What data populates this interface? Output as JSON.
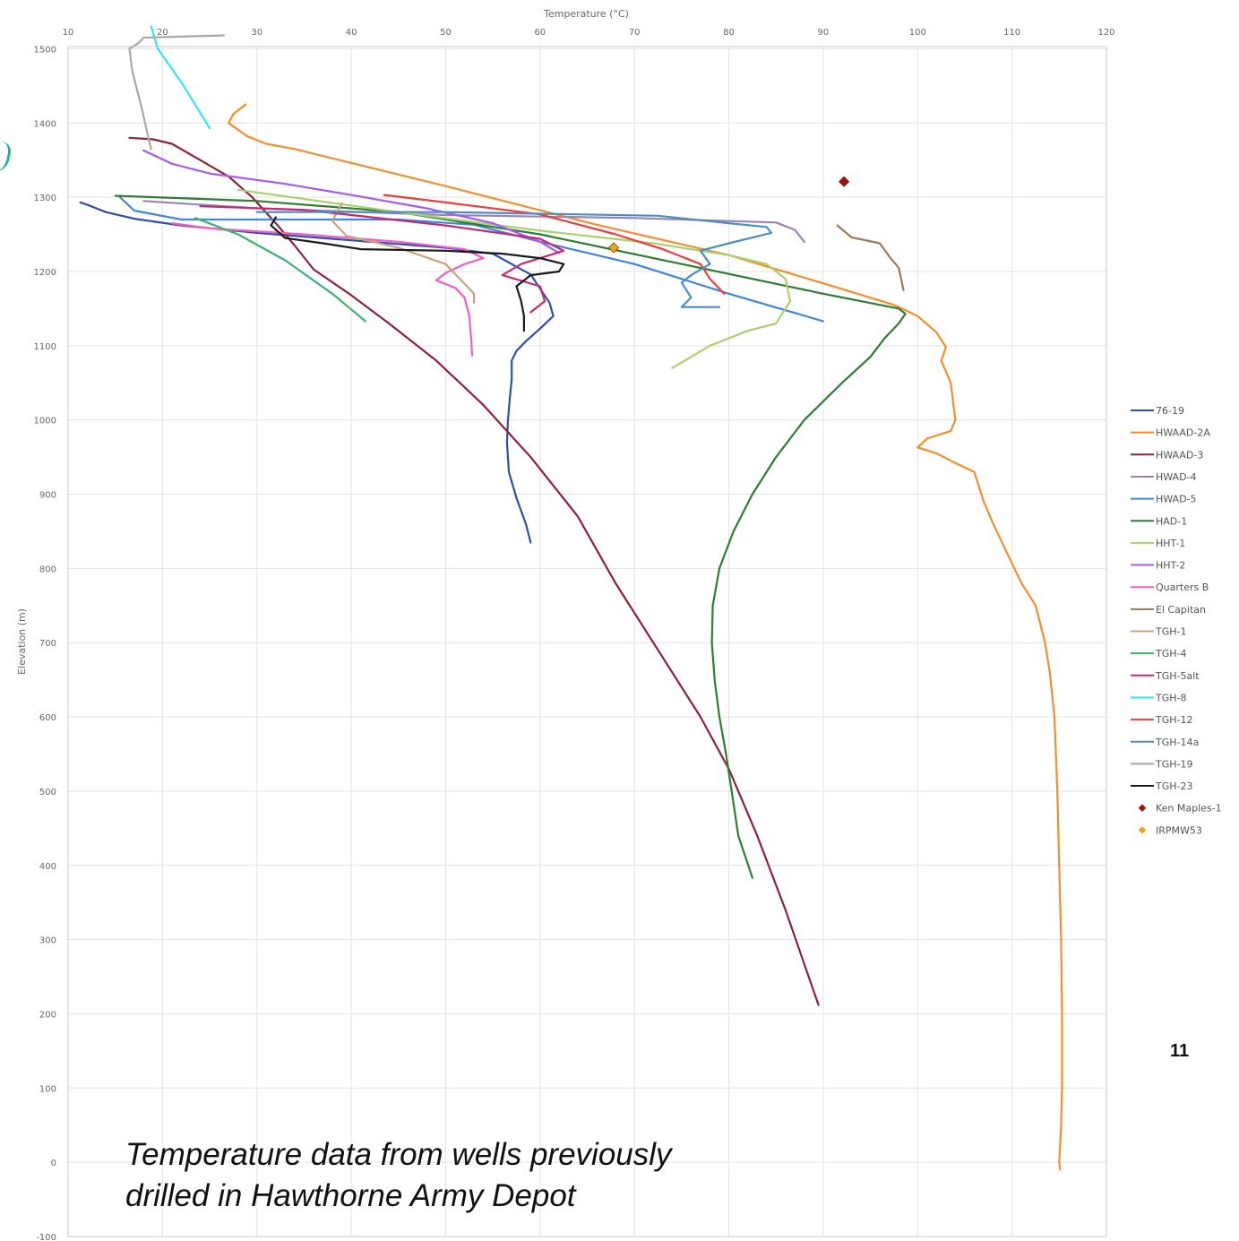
{
  "slide": {
    "caption_line1": "Temperature data from wells previously",
    "caption_line2": "drilled in Hawthorne Army Depot",
    "page_number": "11"
  },
  "chart_data": {
    "type": "line",
    "xlabel": "Temperature (°C)",
    "ylabel": "Elevation (m)",
    "xlim": [
      10,
      120
    ],
    "ylim": [
      -100,
      1550
    ],
    "x_axis_position": "top",
    "x_ticks": [
      10,
      20,
      30,
      40,
      50,
      60,
      70,
      80,
      90,
      100,
      110,
      120
    ],
    "y_ticks": [
      -100,
      0,
      100,
      200,
      300,
      400,
      500,
      600,
      700,
      800,
      900,
      1000,
      1100,
      1200,
      1300,
      1400,
      1500
    ],
    "grid": "vertical and horizontal light gray",
    "legend": "right",
    "series": [
      {
        "name": "76-19",
        "color": "#2f4fa8",
        "type": "line",
        "points": [
          [
            11.3,
            1293
          ],
          [
            12,
            1290
          ],
          [
            14,
            1280
          ],
          [
            17,
            1271
          ],
          [
            22,
            1262
          ],
          [
            30,
            1252
          ],
          [
            40,
            1242
          ],
          [
            50,
            1232
          ],
          [
            55,
            1224
          ],
          [
            59,
            1196
          ],
          [
            61,
            1158
          ],
          [
            61.4,
            1140
          ],
          [
            60,
            1123
          ],
          [
            58.5,
            1106
          ],
          [
            57.5,
            1093
          ],
          [
            57,
            1080
          ],
          [
            57,
            1055
          ],
          [
            56.8,
            1030
          ],
          [
            56.6,
            1000
          ],
          [
            56.5,
            970
          ],
          [
            56.7,
            930
          ],
          [
            57.5,
            895
          ],
          [
            58.5,
            860
          ],
          [
            59,
            835
          ]
        ]
      },
      {
        "name": "HWAAD-2A",
        "color": "#f28e2b",
        "type": "line",
        "points": [
          [
            28.8,
            1425
          ],
          [
            27.5,
            1412
          ],
          [
            27,
            1400
          ],
          [
            29,
            1382
          ],
          [
            31,
            1372
          ],
          [
            34,
            1365
          ],
          [
            50,
            1315
          ],
          [
            66,
            1263
          ],
          [
            80,
            1222
          ],
          [
            90,
            1184
          ],
          [
            97.5,
            1155
          ],
          [
            100,
            1140
          ],
          [
            102,
            1118
          ],
          [
            103,
            1098
          ],
          [
            102.5,
            1080
          ],
          [
            103.5,
            1050
          ],
          [
            104,
            1000
          ],
          [
            103.5,
            985
          ],
          [
            101,
            975
          ],
          [
            100,
            963
          ],
          [
            102,
            955
          ],
          [
            104,
            942
          ],
          [
            106,
            930
          ],
          [
            107,
            890
          ],
          [
            108,
            860
          ],
          [
            109.5,
            820
          ],
          [
            111,
            780
          ],
          [
            112.5,
            750
          ],
          [
            113.5,
            700
          ],
          [
            114,
            660
          ],
          [
            114.5,
            600
          ],
          [
            114.8,
            500
          ],
          [
            115,
            400
          ],
          [
            115.2,
            300
          ],
          [
            115.3,
            200
          ],
          [
            115.3,
            100
          ],
          [
            115.2,
            50
          ],
          [
            115,
            0
          ],
          [
            115.1,
            -10
          ]
        ]
      },
      {
        "name": "HWAAD-3",
        "color": "#8b2335",
        "type": "line",
        "points": [
          [
            16.5,
            1380
          ],
          [
            19,
            1378
          ],
          [
            21,
            1372
          ],
          [
            24,
            1350
          ],
          [
            27,
            1328
          ],
          [
            29.5,
            1300
          ],
          [
            32,
            1265
          ],
          [
            34,
            1235
          ],
          [
            36,
            1203
          ],
          [
            40,
            1168
          ],
          [
            44,
            1130
          ],
          [
            49,
            1080
          ],
          [
            54,
            1020
          ],
          [
            59,
            950
          ],
          [
            64,
            870
          ],
          [
            68,
            780
          ],
          [
            73,
            680
          ],
          [
            77,
            600
          ],
          [
            80,
            530
          ],
          [
            83,
            440
          ],
          [
            86,
            340
          ],
          [
            89,
            230
          ],
          [
            89.5,
            212
          ]
        ]
      },
      {
        "name": "HWAD-4",
        "color": "#9c82b5",
        "type": "line",
        "points": [
          [
            18,
            1295
          ],
          [
            30,
            1285
          ],
          [
            50,
            1276
          ],
          [
            70,
            1272
          ],
          [
            85,
            1266
          ],
          [
            87,
            1256
          ],
          [
            88,
            1240
          ]
        ]
      },
      {
        "name": "HWAD-5",
        "color": "#3d87e0",
        "type": "line",
        "points": [
          [
            15.5,
            1300
          ],
          [
            17,
            1282
          ],
          [
            22,
            1270
          ],
          [
            45,
            1270
          ],
          [
            53,
            1263
          ],
          [
            60,
            1240
          ],
          [
            70,
            1210
          ],
          [
            80,
            1170
          ],
          [
            90,
            1133
          ]
        ]
      },
      {
        "name": "HAD-1",
        "color": "#2e7d32",
        "type": "line",
        "points": [
          [
            15,
            1302
          ],
          [
            30,
            1295
          ],
          [
            45,
            1280
          ],
          [
            60,
            1250
          ],
          [
            75,
            1210
          ],
          [
            90,
            1170
          ],
          [
            98,
            1150
          ],
          [
            98.7,
            1143
          ],
          [
            98,
            1130
          ],
          [
            96.5,
            1110
          ],
          [
            95,
            1085
          ],
          [
            92,
            1050
          ],
          [
            88,
            1000
          ],
          [
            85,
            950
          ],
          [
            82.5,
            900
          ],
          [
            80.5,
            850
          ],
          [
            79,
            800
          ],
          [
            78.3,
            750
          ],
          [
            78.2,
            700
          ],
          [
            78.5,
            650
          ],
          [
            79,
            600
          ],
          [
            79.7,
            550
          ],
          [
            80.3,
            500
          ],
          [
            81,
            440
          ],
          [
            82.5,
            383
          ]
        ]
      },
      {
        "name": "HHT-1",
        "color": "#a9d16e",
        "type": "line",
        "points": [
          [
            28,
            1310
          ],
          [
            45,
            1280
          ],
          [
            60,
            1255
          ],
          [
            72,
            1238
          ],
          [
            80,
            1222
          ],
          [
            84,
            1210
          ],
          [
            86,
            1190
          ],
          [
            86.5,
            1160
          ],
          [
            85,
            1130
          ],
          [
            82,
            1120
          ],
          [
            78,
            1100
          ],
          [
            74,
            1070
          ]
        ]
      },
      {
        "name": "HHT-2",
        "color": "#a55bef",
        "type": "line",
        "points": [
          [
            18,
            1363
          ],
          [
            21,
            1345
          ],
          [
            25,
            1332
          ],
          [
            33,
            1318
          ],
          [
            40,
            1303
          ],
          [
            48,
            1285
          ],
          [
            55,
            1265
          ],
          [
            60,
            1240
          ],
          [
            62,
            1225
          ]
        ]
      },
      {
        "name": "Quarters B",
        "color": "#f25ec6",
        "type": "line",
        "points": [
          [
            21,
            1265
          ],
          [
            25,
            1258
          ],
          [
            35,
            1250
          ],
          [
            45,
            1240
          ],
          [
            52,
            1230
          ],
          [
            54,
            1218
          ],
          [
            52,
            1210
          ],
          [
            50,
            1198
          ],
          [
            49,
            1188
          ],
          [
            51,
            1178
          ],
          [
            52,
            1165
          ],
          [
            52.5,
            1140
          ],
          [
            52.7,
            1110
          ],
          [
            52.8,
            1087
          ]
        ]
      },
      {
        "name": "El Capitan",
        "color": "#9b7a55",
        "type": "line",
        "points": [
          [
            91.5,
            1262
          ],
          [
            93,
            1246
          ],
          [
            96,
            1238
          ],
          [
            97,
            1220
          ],
          [
            98,
            1205
          ],
          [
            98.5,
            1175
          ]
        ]
      },
      {
        "name": "TGH-1",
        "color": "#c9a27e",
        "type": "line",
        "points": [
          [
            39,
            1292
          ],
          [
            38,
            1268
          ],
          [
            39.5,
            1248
          ],
          [
            45,
            1232
          ],
          [
            50,
            1210
          ],
          [
            53,
            1170
          ],
          [
            53,
            1158
          ]
        ]
      },
      {
        "name": "TGH-4",
        "color": "#3cb371",
        "type": "line",
        "points": [
          [
            23.5,
            1272
          ],
          [
            28,
            1250
          ],
          [
            33,
            1215
          ],
          [
            38,
            1170
          ],
          [
            41.5,
            1133
          ]
        ]
      },
      {
        "name": "TGH-5alt",
        "color": "#c42a74",
        "type": "line",
        "points": [
          [
            24,
            1288
          ],
          [
            35,
            1283
          ],
          [
            50,
            1262
          ],
          [
            60,
            1244
          ],
          [
            62.5,
            1228
          ],
          [
            58,
            1210
          ],
          [
            56,
            1195
          ],
          [
            60,
            1180
          ],
          [
            60.5,
            1160
          ],
          [
            59,
            1145
          ]
        ]
      },
      {
        "name": "TGH-8",
        "color": "#34e5f2",
        "type": "line",
        "points": [
          [
            18.8,
            1530
          ],
          [
            19.5,
            1500
          ],
          [
            22,
            1455
          ],
          [
            25,
            1393
          ]
        ]
      },
      {
        "name": "TGH-12",
        "color": "#ef3b3b",
        "type": "line",
        "points": [
          [
            43.5,
            1303
          ],
          [
            50,
            1293
          ],
          [
            60,
            1277
          ],
          [
            68,
            1250
          ],
          [
            73,
            1230
          ],
          [
            77,
            1210
          ],
          [
            78,
            1190
          ],
          [
            79.5,
            1170
          ]
        ]
      },
      {
        "name": "TGH-14a",
        "color": "#4a8fbd",
        "type": "line",
        "points": [
          [
            30,
            1280
          ],
          [
            50,
            1280
          ],
          [
            72.5,
            1275
          ],
          [
            80,
            1265
          ],
          [
            84,
            1260
          ],
          [
            84.5,
            1252
          ],
          [
            80,
            1238
          ],
          [
            77,
            1228
          ],
          [
            78,
            1210
          ],
          [
            76,
            1195
          ],
          [
            75,
            1185
          ],
          [
            76,
            1165
          ],
          [
            75,
            1152
          ],
          [
            79,
            1152
          ]
        ]
      },
      {
        "name": "TGH-19",
        "color": "#a9a9a9",
        "type": "line",
        "points": [
          [
            26.5,
            1518
          ],
          [
            18,
            1515
          ],
          [
            17.5,
            1508
          ],
          [
            16.5,
            1500
          ],
          [
            16.8,
            1470
          ],
          [
            17.8,
            1420
          ],
          [
            18.5,
            1380
          ],
          [
            18.8,
            1365
          ]
        ]
      },
      {
        "name": "TGH-23",
        "color": "#1a1a1a",
        "type": "line",
        "points": [
          [
            32,
            1273
          ],
          [
            31.5,
            1262
          ],
          [
            33,
            1245
          ],
          [
            37,
            1238
          ],
          [
            41,
            1230
          ],
          [
            50,
            1228
          ],
          [
            56,
            1224
          ],
          [
            60,
            1218
          ],
          [
            62.5,
            1210
          ],
          [
            62,
            1200
          ],
          [
            59,
            1195
          ],
          [
            57.5,
            1180
          ],
          [
            58,
            1160
          ],
          [
            58.3,
            1140
          ],
          [
            58.3,
            1120
          ]
        ]
      },
      {
        "name": "Ken Maples-1",
        "color": "#a01111",
        "type": "point",
        "points": [
          [
            92.2,
            1321
          ]
        ]
      },
      {
        "name": "IRPMW53",
        "color": "#e7a51a",
        "type": "point",
        "points": [
          [
            67.8,
            1232
          ]
        ]
      }
    ]
  }
}
